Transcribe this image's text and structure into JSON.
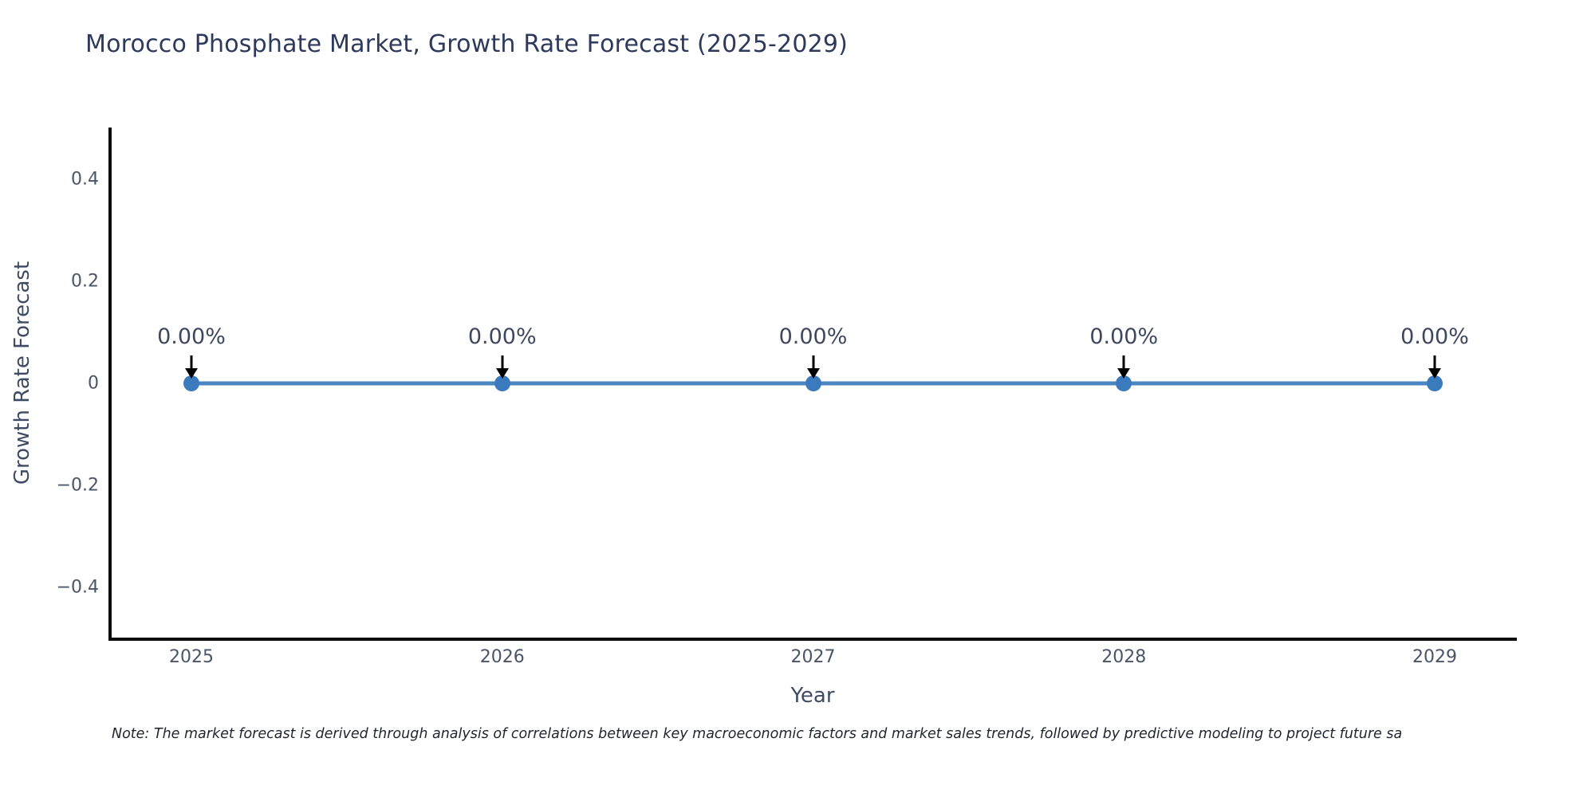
{
  "title": "Morocco Phosphate Market, Growth Rate Forecast (2025-2029)",
  "chart_data": {
    "type": "line",
    "x": [
      2025,
      2026,
      2027,
      2028,
      2029
    ],
    "series": [
      {
        "name": "Growth Rate Forecast",
        "values": [
          0,
          0,
          0,
          0,
          0
        ]
      }
    ],
    "point_labels": [
      "0.00%",
      "0.00%",
      "0.00%",
      "0.00%",
      "0.00%"
    ],
    "title": "Morocco Phosphate Market, Growth Rate Forecast (2025-2029)",
    "xlabel": "Year",
    "ylabel": "Growth Rate Forecast",
    "ylim": [
      -0.5,
      0.5
    ],
    "yticks": [
      {
        "value": 0.4,
        "label": "0.4"
      },
      {
        "value": 0.2,
        "label": "0.2"
      },
      {
        "value": 0,
        "label": "0"
      },
      {
        "value": -0.2,
        "label": "−0.2"
      },
      {
        "value": -0.4,
        "label": "−0.4"
      }
    ],
    "xticks": [
      "2025",
      "2026",
      "2027",
      "2028",
      "2029"
    ],
    "grid": false,
    "legend": "none",
    "line_color": "#4a86c2",
    "marker_color": "#3b7bbd",
    "annotation_arrow_color": "#000000"
  },
  "note": "Note: The market forecast is derived through analysis of correlations between key macroeconomic factors and market sales trends, followed by predictive modeling to project future sa"
}
